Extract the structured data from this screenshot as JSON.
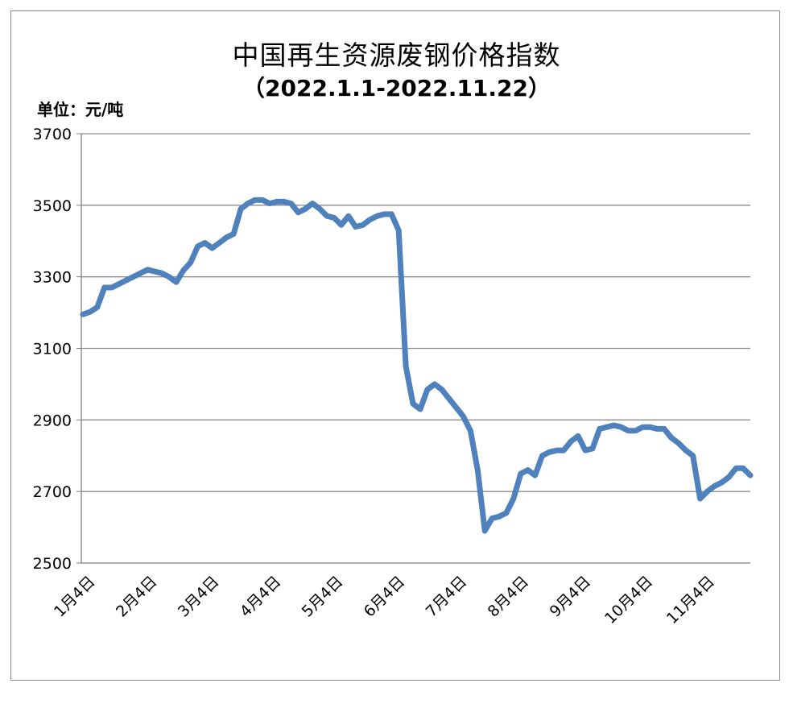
{
  "chart_data": {
    "type": "line",
    "title": "中国再生资源废钢价格指数",
    "subtitle": "（2022.1.1-2022.11.22）",
    "unit_label": "单位：元/吨",
    "xlabel": "",
    "ylabel": "",
    "ylim": [
      2500,
      3700
    ],
    "yticks": [
      2500,
      2700,
      2900,
      3100,
      3300,
      3500,
      3700
    ],
    "x_tick_labels": [
      "1月4日",
      "2月4日",
      "3月4日",
      "4月4日",
      "5月4日",
      "6月4日",
      "7月4日",
      "8月4日",
      "9月4日",
      "10月4日",
      "11月4日"
    ],
    "grid": true,
    "legend": "none",
    "line_color": "#4f81bd",
    "series": [
      {
        "values": [
          3195,
          3202,
          3215,
          3270,
          3270,
          3280,
          3290,
          3300,
          3310,
          3320,
          3315,
          3310,
          3300,
          3285,
          3318,
          3340,
          3385,
          3395,
          3380,
          3395,
          3410,
          3420,
          3490,
          3505,
          3515,
          3515,
          3505,
          3510,
          3510,
          3505,
          3480,
          3490,
          3505,
          3490,
          3470,
          3465,
          3445,
          3470,
          3440,
          3445,
          3460,
          3470,
          3475,
          3475,
          3430,
          3050,
          2945,
          2930,
          2985,
          3000,
          2985,
          2960,
          2935,
          2910,
          2870,
          2760,
          2590,
          2625,
          2630,
          2640,
          2680,
          2750,
          2760,
          2745,
          2800,
          2810,
          2815,
          2815,
          2840,
          2855,
          2815,
          2820,
          2875,
          2880,
          2885,
          2880,
          2870,
          2870,
          2880,
          2880,
          2875,
          2875,
          2850,
          2835,
          2815,
          2800,
          2680,
          2700,
          2715,
          2725,
          2740,
          2765,
          2765,
          2745
        ]
      }
    ]
  }
}
